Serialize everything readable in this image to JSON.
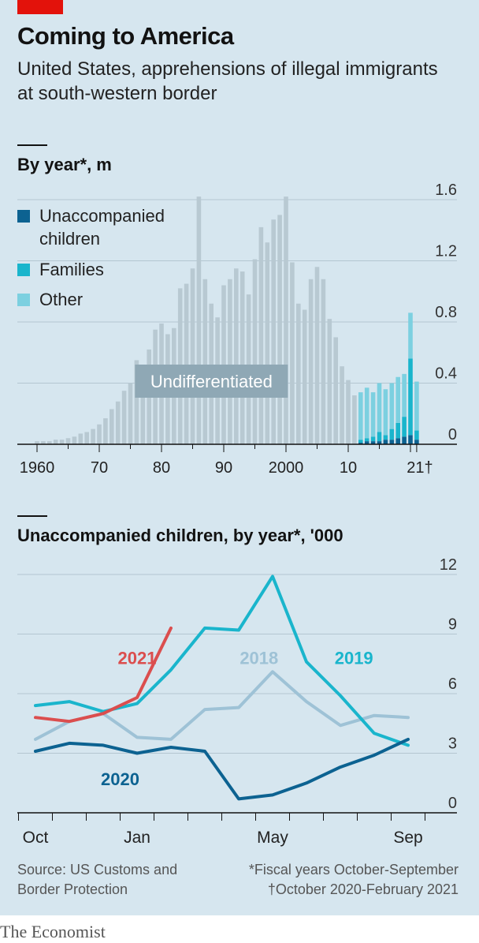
{
  "header": {
    "title": "Coming to America",
    "subtitle": "United States, apprehensions of illegal immigrants at south-western border",
    "accent_color": "#e3120b"
  },
  "footer": {
    "source": "Source: US Customs and Border Protection",
    "footnote_1": "*Fiscal years October-September",
    "footnote_2": "†October 2020-February 2021",
    "brand": "The Economist"
  },
  "chart_data": [
    {
      "type": "bar",
      "title": "By year*, m",
      "stacked": true,
      "x_tick_labels": [
        "1960",
        "70",
        "80",
        "90",
        "2000",
        "10",
        "21†"
      ],
      "y_ticks": [
        "1.6",
        "1.2",
        "0.8",
        "0.4",
        "0"
      ],
      "ylim": [
        0,
        1.6
      ],
      "annotation": "Undifferentiated",
      "legend": [
        "Unaccompanied children",
        "Families",
        "Other"
      ],
      "colors": {
        "undifferentiated": "#b8c9d2",
        "unaccompanied": "#0c6291",
        "families": "#1ab5cc",
        "other": "#7cd0e0",
        "annotation_box": "#8fa8b5"
      },
      "years": [
        1960,
        1961,
        1962,
        1963,
        1964,
        1965,
        1966,
        1967,
        1968,
        1969,
        1970,
        1971,
        1972,
        1973,
        1974,
        1975,
        1976,
        1977,
        1978,
        1979,
        1980,
        1981,
        1982,
        1983,
        1984,
        1985,
        1986,
        1987,
        1988,
        1989,
        1990,
        1991,
        1992,
        1993,
        1994,
        1995,
        1996,
        1997,
        1998,
        1999,
        2000,
        2001,
        2002,
        2003,
        2004,
        2005,
        2006,
        2007,
        2008,
        2009,
        2010,
        2011,
        2012,
        2013,
        2014,
        2015,
        2016,
        2017,
        2018,
        2019,
        2020,
        2021
      ],
      "undifferentiated": [
        0.02,
        0.02,
        0.02,
        0.03,
        0.03,
        0.04,
        0.05,
        0.07,
        0.08,
        0.1,
        0.13,
        0.17,
        0.23,
        0.28,
        0.35,
        0.4,
        0.55,
        0.52,
        0.62,
        0.75,
        0.79,
        0.72,
        0.76,
        1.02,
        1.05,
        1.15,
        1.62,
        1.08,
        0.92,
        0.83,
        1.04,
        1.08,
        1.15,
        1.13,
        0.98,
        1.21,
        1.42,
        1.32,
        1.47,
        1.5,
        1.62,
        1.19,
        0.92,
        0.88,
        1.08,
        1.16,
        1.08,
        0.82,
        0.7,
        0.51,
        0.42,
        0.32
      ],
      "unaccompanied": [
        0.01,
        0.02,
        0.02,
        0.02,
        0.03,
        0.03,
        0.04,
        0.05,
        0.06,
        0.03
      ],
      "families": [
        0.02,
        0.02,
        0.03,
        0.06,
        0.03,
        0.07,
        0.1,
        0.13,
        0.5,
        0.06
      ],
      "other": [
        0.31,
        0.33,
        0.29,
        0.32,
        0.3,
        0.3,
        0.3,
        0.28,
        0.3,
        0.32
      ]
    },
    {
      "type": "line",
      "title": "Unaccompanied children, by year*, '000",
      "x_tick_labels": [
        "Oct",
        "Jan",
        "May",
        "Sep"
      ],
      "y_ticks": [
        "12",
        "9",
        "6",
        "3",
        "0"
      ],
      "ylim": [
        0,
        12
      ],
      "months": [
        "Oct",
        "Nov",
        "Dec",
        "Jan",
        "Feb",
        "Mar",
        "Apr",
        "May",
        "Jun",
        "Jul",
        "Aug",
        "Sep"
      ],
      "series": [
        {
          "name": "2018",
          "color": "#9ec2d6",
          "values": [
            3.7,
            4.6,
            5.0,
            3.8,
            3.7,
            5.2,
            5.3,
            7.1,
            5.6,
            4.4,
            4.9,
            4.8
          ]
        },
        {
          "name": "2019",
          "color": "#1ab5cc",
          "values": [
            5.4,
            5.6,
            5.1,
            5.5,
            7.2,
            9.3,
            9.2,
            11.9,
            7.6,
            5.9,
            4.0,
            3.4
          ]
        },
        {
          "name": "2020",
          "color": "#0c6291",
          "values": [
            3.1,
            3.5,
            3.4,
            3.0,
            3.3,
            3.1,
            0.7,
            0.9,
            1.5,
            2.3,
            2.9,
            3.7
          ]
        },
        {
          "name": "2021",
          "color": "#db4e4e",
          "values": [
            4.8,
            4.6,
            5.0,
            5.8,
            9.3
          ]
        }
      ]
    }
  ]
}
